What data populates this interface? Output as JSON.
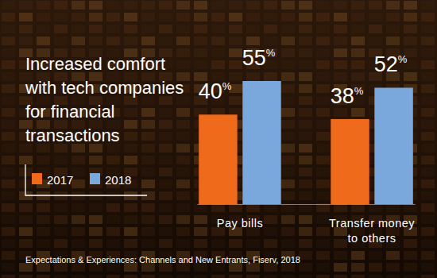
{
  "chart_data": {
    "type": "bar",
    "title": "Increased comfort with tech companies for financial transactions",
    "categories": [
      "Pay bills",
      "Transfer money to others"
    ],
    "series": [
      {
        "name": "2017",
        "color": "#f06a1c",
        "values": [
          40,
          38
        ],
        "value_labels": [
          "40%",
          "38%"
        ]
      },
      {
        "name": "2018",
        "color": "#7aa7dc",
        "values": [
          55,
          52
        ],
        "value_labels": [
          "55%",
          "52%"
        ]
      }
    ],
    "data_labels": true,
    "tick_labels": "x",
    "grid": false,
    "legend": "lower left",
    "source": "Expectations & Experiences: Channels and New Entrants, Fiserv, 2018"
  }
}
